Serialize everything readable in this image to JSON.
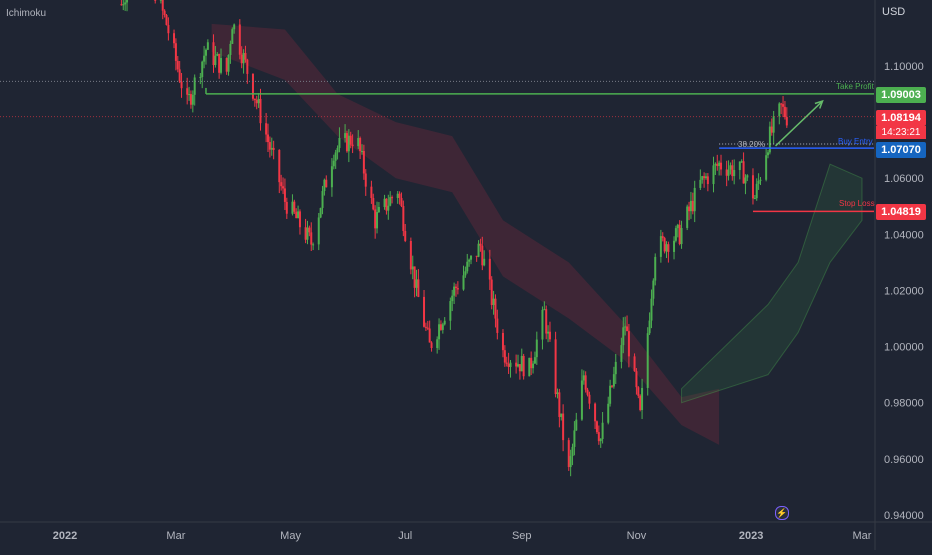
{
  "chart_data": {
    "type": "candlestick",
    "instrument_note": "",
    "indicator": "Ichimoku",
    "currency": "USD",
    "y_axis": {
      "ticks": [
        1.1,
        1.08,
        1.06,
        1.04,
        1.02,
        1.0,
        0.98,
        0.96,
        0.94
      ],
      "tick_labels": [
        "1.10000",
        "1.08000",
        "1.06000",
        "1.04000",
        "1.02000",
        "1.00000",
        "0.98000",
        "0.96000",
        "0.94000"
      ],
      "ylim": [
        0.9375,
        1.1235
      ]
    },
    "x_axis": {
      "ticks": [
        {
          "label": "2022",
          "date": "2022-01-01",
          "bold": true
        },
        {
          "label": "Mar",
          "date": "2022-03-01",
          "bold": false
        },
        {
          "label": "May",
          "date": "2022-05-01",
          "bold": false
        },
        {
          "label": "Jul",
          "date": "2022-07-01",
          "bold": false
        },
        {
          "label": "Sep",
          "date": "2022-09-01",
          "bold": false
        },
        {
          "label": "Nov",
          "date": "2022-11-01",
          "bold": false
        },
        {
          "label": "2023",
          "date": "2023-01-01",
          "bold": true
        },
        {
          "label": "Mar",
          "date": "2023-03-01",
          "bold": false
        }
      ]
    },
    "price_points": [
      {
        "date": "2022-01-31",
        "price": 1.122
      },
      {
        "date": "2022-02-10",
        "price": 1.142
      },
      {
        "date": "2022-02-24",
        "price": 1.115
      },
      {
        "date": "2022-03-07",
        "price": 1.086
      },
      {
        "date": "2022-03-17",
        "price": 1.106
      },
      {
        "date": "2022-03-28",
        "price": 1.098
      },
      {
        "date": "2022-03-31",
        "price": 1.116
      },
      {
        "date": "2022-04-14",
        "price": 1.085
      },
      {
        "date": "2022-04-28",
        "price": 1.052
      },
      {
        "date": "2022-05-12",
        "price": 1.037
      },
      {
        "date": "2022-05-24",
        "price": 1.07
      },
      {
        "date": "2022-06-05",
        "price": 1.075
      },
      {
        "date": "2022-06-15",
        "price": 1.045
      },
      {
        "date": "2022-06-27",
        "price": 1.056
      },
      {
        "date": "2022-07-07",
        "price": 1.02
      },
      {
        "date": "2022-07-14",
        "price": 1.0
      },
      {
        "date": "2022-07-27",
        "price": 1.02
      },
      {
        "date": "2022-08-10",
        "price": 1.036
      },
      {
        "date": "2022-08-22",
        "price": 0.998
      },
      {
        "date": "2022-09-05",
        "price": 0.992
      },
      {
        "date": "2022-09-13",
        "price": 1.012
      },
      {
        "date": "2022-09-26",
        "price": 0.955
      },
      {
        "date": "2022-10-04",
        "price": 0.99
      },
      {
        "date": "2022-10-13",
        "price": 0.967
      },
      {
        "date": "2022-10-26",
        "price": 1.008
      },
      {
        "date": "2022-11-03",
        "price": 0.975
      },
      {
        "date": "2022-11-11",
        "price": 1.035
      },
      {
        "date": "2022-11-24",
        "price": 1.04
      },
      {
        "date": "2022-12-05",
        "price": 1.058
      },
      {
        "date": "2022-12-15",
        "price": 1.065
      },
      {
        "date": "2022-12-28",
        "price": 1.062
      },
      {
        "date": "2023-01-03",
        "price": 1.053
      },
      {
        "date": "2023-01-10",
        "price": 1.073
      },
      {
        "date": "2023-01-17",
        "price": 1.085
      },
      {
        "date": "2023-01-20",
        "price": 1.082
      }
    ],
    "cloud": [
      {
        "date": "2022-03-20",
        "top": 1.115,
        "bottom": 1.105,
        "color": "red"
      },
      {
        "date": "2022-04-28",
        "top": 1.113,
        "bottom": 1.095,
        "color": "red"
      },
      {
        "date": "2022-05-26",
        "top": 1.09,
        "bottom": 1.075,
        "color": "red"
      },
      {
        "date": "2022-06-26",
        "top": 1.08,
        "bottom": 1.06,
        "color": "red"
      },
      {
        "date": "2022-07-26",
        "top": 1.075,
        "bottom": 1.055,
        "color": "red"
      },
      {
        "date": "2022-08-22",
        "top": 1.045,
        "bottom": 1.025,
        "color": "red"
      },
      {
        "date": "2022-09-26",
        "top": 1.03,
        "bottom": 1.01,
        "color": "red"
      },
      {
        "date": "2022-10-26",
        "top": 1.008,
        "bottom": 0.995,
        "color": "red"
      },
      {
        "date": "2022-11-25",
        "top": 0.982,
        "bottom": 0.972,
        "color": "red"
      },
      {
        "date": "2022-12-15",
        "top": 0.985,
        "bottom": 0.965,
        "color": "red"
      }
    ],
    "cloud_green": [
      {
        "date": "2022-11-25",
        "top": 0.985,
        "bottom": 0.98
      },
      {
        "date": "2023-01-10",
        "top": 1.015,
        "bottom": 0.99
      },
      {
        "date": "2023-01-26",
        "top": 1.03,
        "bottom": 1.005
      },
      {
        "date": "2023-02-12",
        "top": 1.065,
        "bottom": 1.03
      },
      {
        "date": "2023-03-01",
        "top": 1.06,
        "bottom": 1.045
      }
    ],
    "levels": {
      "take_profit": {
        "label": "Take Profit",
        "value": 1.09003,
        "value_label": "1.09003",
        "color": "#4caf50",
        "start_date": "2022-03-17"
      },
      "entry": {
        "label": "Buy Entry",
        "value": 1.0707,
        "value_label": "1.07070",
        "color": "#2962ff",
        "start_date": "2022-12-15"
      },
      "stop_loss": {
        "label": "Stop Loss",
        "value": 1.04819,
        "value_label": "1.04819",
        "color": "#f23645",
        "start_date": "2023-01-02"
      },
      "current_price": {
        "value": 1.08194,
        "value_label": "1.08194",
        "countdown": "14:23:21",
        "color": "#f23645"
      },
      "fib": {
        "label": "38.20%",
        "value": 1.0722
      },
      "dotted_high": {
        "value": 1.0945
      }
    },
    "arrow": {
      "start": {
        "date": "2023-01-14",
        "price": 1.0715
      },
      "end": {
        "date": "2023-02-08",
        "price": 1.0875
      },
      "color": "#66bb6a"
    }
  },
  "ui": {
    "indicator_label": "Ichimoku",
    "currency_label": "USD"
  }
}
